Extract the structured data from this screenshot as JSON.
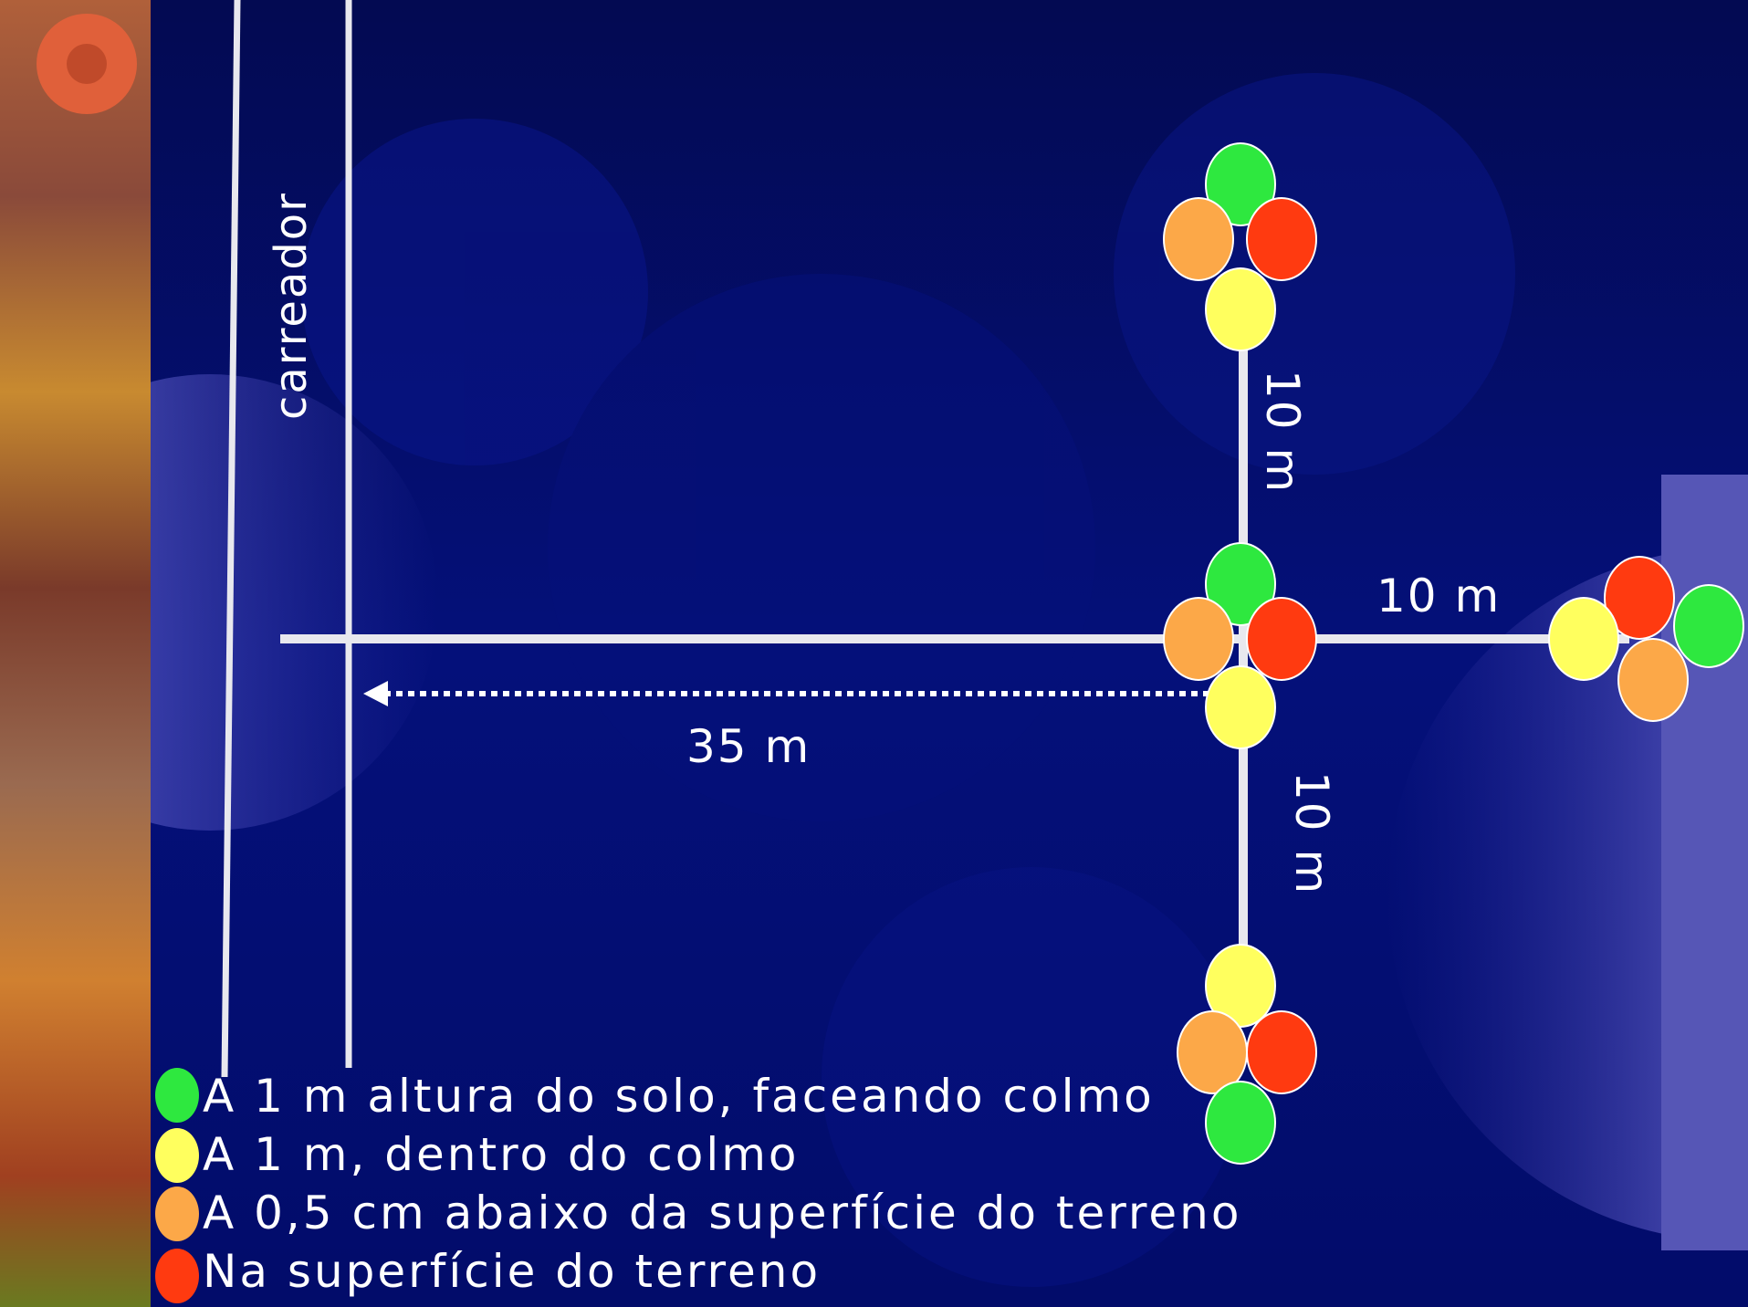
{
  "colors": {
    "background": "#020c5c",
    "line": "#e8e8ee",
    "green": "#2ee83f",
    "yellow": "#ffff5e",
    "orange": "#fca848",
    "red": "#ff3a10"
  },
  "labels": {
    "road": "carreador",
    "dist_horizontal": "35 m",
    "dist_up": "10 m",
    "dist_right": "10 m",
    "dist_down": "10 m"
  },
  "legend": [
    {
      "color": "green",
      "text": "A 1 m altura do solo, faceando colmo"
    },
    {
      "color": "yellow",
      "text": "A 1 m, dentro do colmo"
    },
    {
      "color": "orange",
      "text": "A 0,5 cm abaixo da superfície do terreno"
    },
    {
      "color": "red",
      "text": "Na superfície do terreno"
    }
  ]
}
